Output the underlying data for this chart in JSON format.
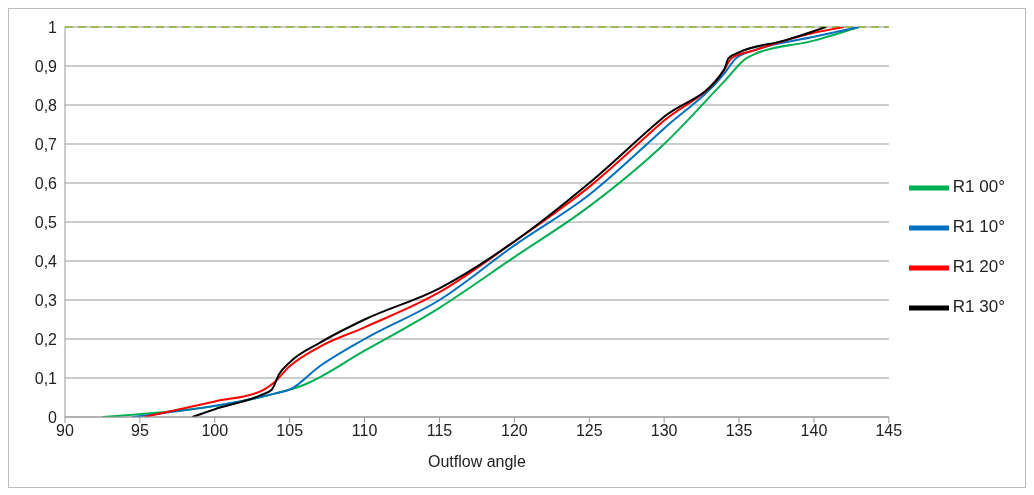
{
  "chart_data": {
    "type": "line",
    "xlabel": "Outflow angle",
    "xlim": [
      90,
      145
    ],
    "xticks": [
      90,
      95,
      100,
      105,
      110,
      115,
      120,
      125,
      130,
      135,
      140,
      145
    ],
    "ylim": [
      0,
      1
    ],
    "yticks": [
      0,
      {
        "value": 0.1,
        "label": "0,1"
      },
      {
        "value": 0.2,
        "label": "0,2"
      },
      {
        "value": 0.3,
        "label": "0,3"
      },
      {
        "value": 0.4,
        "label": "0,4"
      },
      {
        "value": 0.5,
        "label": "0,5"
      },
      {
        "value": 0.6,
        "label": "0,6"
      },
      {
        "value": 0.7,
        "label": "0,7"
      },
      {
        "value": 0.8,
        "label": "0,8"
      },
      {
        "value": 0.9,
        "label": "0,9"
      },
      1
    ],
    "grid": "y",
    "legend": "right",
    "marker": "none",
    "line_style": "solid",
    "ref_lines": [
      {
        "axis": "y",
        "value": 1,
        "color": "#9bbb59",
        "line_style": "dashed"
      }
    ],
    "series": [
      {
        "name": "R1 00°",
        "color": "#00b050",
        "x": [
          92.5,
          104,
          105.8,
          110,
          115,
          120,
          125,
          130,
          134,
          135.5,
          136,
          140,
          143
        ],
        "values": [
          0,
          0.06,
          0.08,
          0.17,
          0.28,
          0.41,
          0.54,
          0.7,
          0.86,
          0.92,
          0.93,
          0.965,
          1
        ]
      },
      {
        "name": "R1 10°",
        "color": "#0070c0",
        "x": [
          94.5,
          104,
          105,
          107,
          110,
          115,
          120,
          125,
          130,
          134,
          134.8,
          136,
          140,
          143
        ],
        "values": [
          0,
          0.06,
          0.07,
          0.13,
          0.2,
          0.3,
          0.44,
          0.57,
          0.74,
          0.88,
          0.92,
          0.94,
          0.975,
          1
        ]
      },
      {
        "name": "R1 20°",
        "color": "#ff0000",
        "x": [
          95.3,
          100,
          103,
          104,
          105,
          107,
          110,
          115,
          120,
          125,
          130,
          134,
          134.5,
          136,
          140,
          142
        ],
        "values": [
          0,
          0.04,
          0.065,
          0.09,
          0.13,
          0.18,
          0.23,
          0.32,
          0.45,
          0.59,
          0.76,
          0.89,
          0.92,
          0.94,
          0.985,
          1
        ]
      },
      {
        "name": "R1 30°",
        "color": "#000000",
        "x": [
          98.5,
          100,
          103,
          103.8,
          104.3,
          105,
          107,
          110,
          115,
          120,
          125,
          130,
          134,
          134.3,
          135,
          138,
          140.8
        ],
        "values": [
          0,
          0.02,
          0.055,
          0.07,
          0.11,
          0.14,
          0.19,
          0.25,
          0.33,
          0.45,
          0.6,
          0.77,
          0.89,
          0.92,
          0.935,
          0.965,
          1
        ]
      }
    ]
  }
}
